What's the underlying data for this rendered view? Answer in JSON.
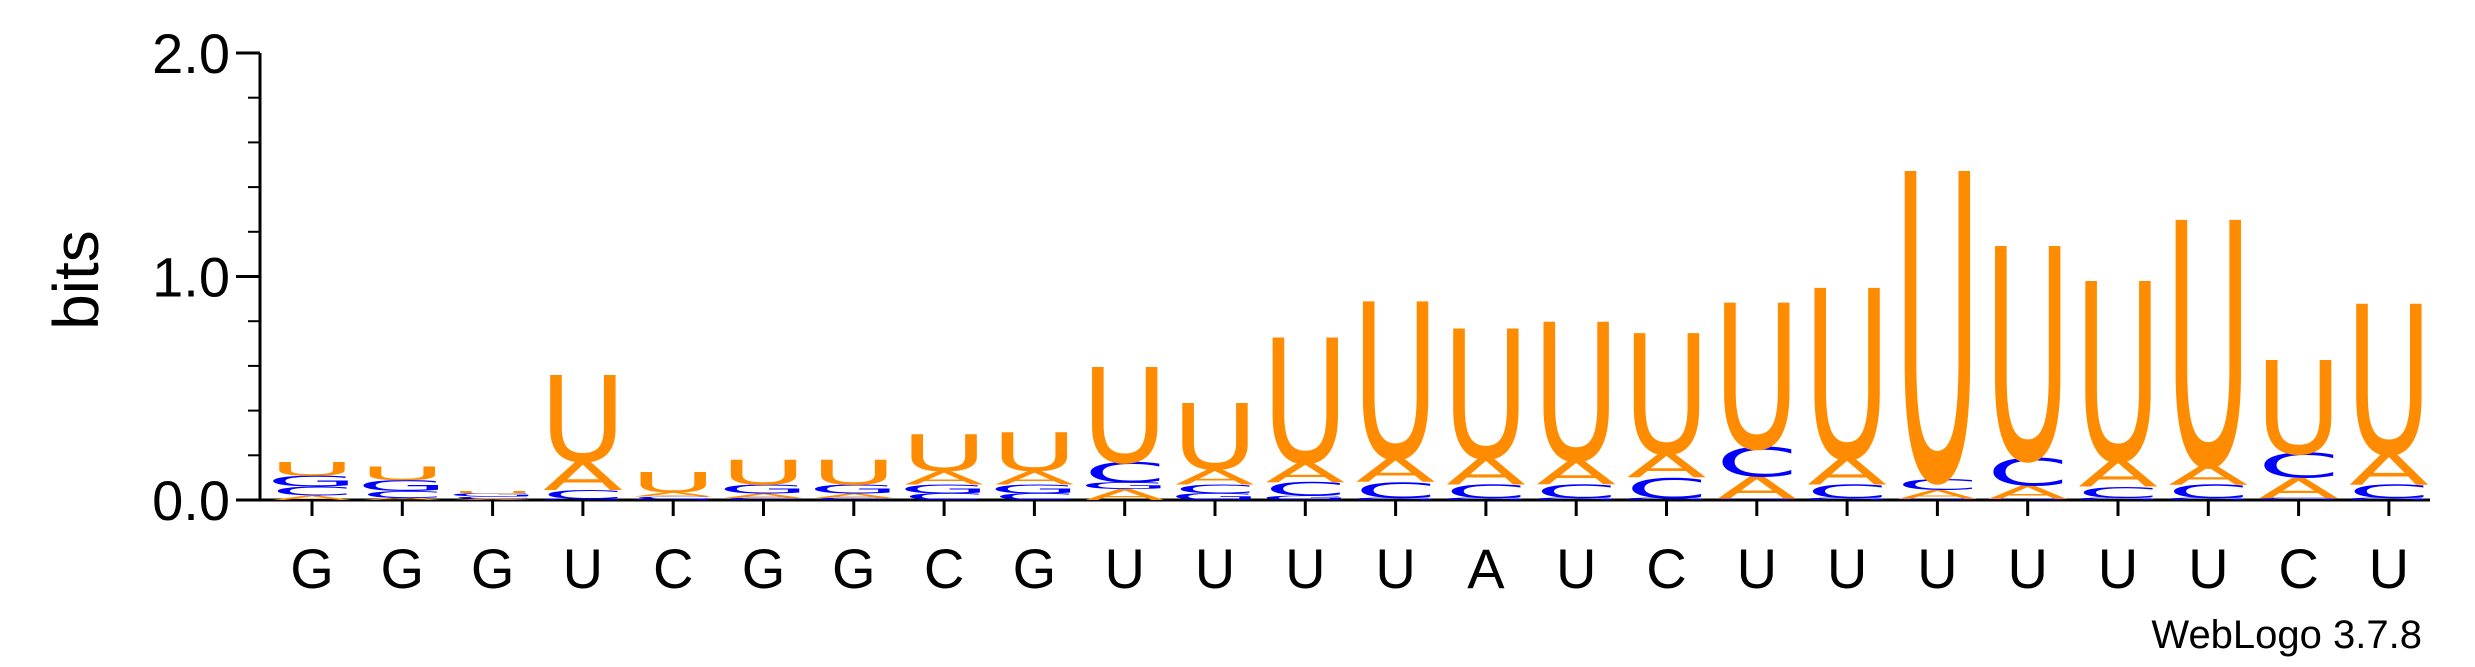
{
  "chart_data": {
    "type": "sequence-logo",
    "ylabel": "bits",
    "ylim": [
      0,
      2.0
    ],
    "y_ticks": [
      "0.0",
      "1.0",
      "2.0"
    ],
    "footer": "WebLogo 3.7.8",
    "colors": {
      "U": "#ff8c00",
      "A": "#ff8c00",
      "C": "#0000ff",
      "G": "#0000ff"
    },
    "positions": [
      {
        "label": "G",
        "letters": [
          {
            "l": "A",
            "v": 0.02
          },
          {
            "l": "C",
            "v": 0.04
          },
          {
            "l": "G",
            "v": 0.05
          },
          {
            "l": "U",
            "v": 0.06
          }
        ]
      },
      {
        "label": "G",
        "letters": [
          {
            "l": "A",
            "v": 0.01
          },
          {
            "l": "C",
            "v": 0.03
          },
          {
            "l": "G",
            "v": 0.05
          },
          {
            "l": "U",
            "v": 0.06
          }
        ]
      },
      {
        "label": "G",
        "letters": [
          {
            "l": "A",
            "v": 0.005
          },
          {
            "l": "C",
            "v": 0.01
          },
          {
            "l": "G",
            "v": 0.015
          },
          {
            "l": "U",
            "v": 0.01
          }
        ]
      },
      {
        "label": "U",
        "letters": [
          {
            "l": "G",
            "v": 0.005
          },
          {
            "l": "C",
            "v": 0.04
          },
          {
            "l": "A",
            "v": 0.13
          },
          {
            "l": "U",
            "v": 0.38
          }
        ]
      },
      {
        "label": "C",
        "letters": [
          {
            "l": "G",
            "v": 0.005
          },
          {
            "l": "C",
            "v": 0.01
          },
          {
            "l": "A",
            "v": 0.02
          },
          {
            "l": "U",
            "v": 0.09
          }
        ]
      },
      {
        "label": "G",
        "letters": [
          {
            "l": "C",
            "v": 0.01
          },
          {
            "l": "A",
            "v": 0.02
          },
          {
            "l": "G",
            "v": 0.04
          },
          {
            "l": "U",
            "v": 0.11
          }
        ]
      },
      {
        "label": "G",
        "letters": [
          {
            "l": "C",
            "v": 0.01
          },
          {
            "l": "A",
            "v": 0.02
          },
          {
            "l": "G",
            "v": 0.04
          },
          {
            "l": "U",
            "v": 0.11
          }
        ]
      },
      {
        "label": "C",
        "letters": [
          {
            "l": "C",
            "v": 0.03
          },
          {
            "l": "G",
            "v": 0.04
          },
          {
            "l": "A",
            "v": 0.06
          },
          {
            "l": "U",
            "v": 0.16
          }
        ]
      },
      {
        "label": "G",
        "letters": [
          {
            "l": "C",
            "v": 0.03
          },
          {
            "l": "G",
            "v": 0.04
          },
          {
            "l": "A",
            "v": 0.06
          },
          {
            "l": "U",
            "v": 0.17
          }
        ]
      },
      {
        "label": "U",
        "letters": [
          {
            "l": "A",
            "v": 0.05
          },
          {
            "l": "G",
            "v": 0.03
          },
          {
            "l": "C",
            "v": 0.09
          },
          {
            "l": "U",
            "v": 0.42
          }
        ]
      },
      {
        "label": "U",
        "letters": [
          {
            "l": "G",
            "v": 0.03
          },
          {
            "l": "C",
            "v": 0.04
          },
          {
            "l": "A",
            "v": 0.07
          },
          {
            "l": "U",
            "v": 0.29
          }
        ]
      },
      {
        "label": "U",
        "letters": [
          {
            "l": "G",
            "v": 0.02
          },
          {
            "l": "C",
            "v": 0.06
          },
          {
            "l": "A",
            "v": 0.09
          },
          {
            "l": "U",
            "v": 0.55
          }
        ]
      },
      {
        "label": "U",
        "letters": [
          {
            "l": "G",
            "v": 0.01
          },
          {
            "l": "C",
            "v": 0.07
          },
          {
            "l": "A",
            "v": 0.11
          },
          {
            "l": "U",
            "v": 0.69
          }
        ]
      },
      {
        "label": "A",
        "letters": [
          {
            "l": "G",
            "v": 0.01
          },
          {
            "l": "C",
            "v": 0.06
          },
          {
            "l": "A",
            "v": 0.12
          },
          {
            "l": "U",
            "v": 0.57
          }
        ]
      },
      {
        "label": "U",
        "letters": [
          {
            "l": "G",
            "v": 0.01
          },
          {
            "l": "C",
            "v": 0.06
          },
          {
            "l": "A",
            "v": 0.11
          },
          {
            "l": "U",
            "v": 0.61
          }
        ]
      },
      {
        "label": "C",
        "letters": [
          {
            "l": "G",
            "v": 0.01
          },
          {
            "l": "C",
            "v": 0.09
          },
          {
            "l": "A",
            "v": 0.11
          },
          {
            "l": "U",
            "v": 0.53
          }
        ]
      },
      {
        "label": "U",
        "letters": [
          {
            "l": "G",
            "v": 0.005
          },
          {
            "l": "A",
            "v": 0.1
          },
          {
            "l": "C",
            "v": 0.13
          },
          {
            "l": "U",
            "v": 0.64
          }
        ]
      },
      {
        "label": "U",
        "letters": [
          {
            "l": "G",
            "v": 0.01
          },
          {
            "l": "C",
            "v": 0.06
          },
          {
            "l": "A",
            "v": 0.12
          },
          {
            "l": "U",
            "v": 0.75
          }
        ]
      },
      {
        "label": "U",
        "letters": [
          {
            "l": "G",
            "v": 0.005
          },
          {
            "l": "A",
            "v": 0.04
          },
          {
            "l": "C",
            "v": 0.05
          },
          {
            "l": "U",
            "v": 1.36
          }
        ]
      },
      {
        "label": "U",
        "letters": [
          {
            "l": "G",
            "v": 0.005
          },
          {
            "l": "A",
            "v": 0.06
          },
          {
            "l": "C",
            "v": 0.12
          },
          {
            "l": "U",
            "v": 0.94
          }
        ]
      },
      {
        "label": "U",
        "letters": [
          {
            "l": "G",
            "v": 0.01
          },
          {
            "l": "C",
            "v": 0.05
          },
          {
            "l": "A",
            "v": 0.12
          },
          {
            "l": "U",
            "v": 0.79
          }
        ]
      },
      {
        "label": "U",
        "letters": [
          {
            "l": "G",
            "v": 0.01
          },
          {
            "l": "C",
            "v": 0.06
          },
          {
            "l": "A",
            "v": 0.09
          },
          {
            "l": "U",
            "v": 1.08
          }
        ]
      },
      {
        "label": "C",
        "letters": [
          {
            "l": "G",
            "v": 0.01
          },
          {
            "l": "A",
            "v": 0.09
          },
          {
            "l": "C",
            "v": 0.11
          },
          {
            "l": "U",
            "v": 0.41
          }
        ]
      },
      {
        "label": "U",
        "letters": [
          {
            "l": "G",
            "v": 0.01
          },
          {
            "l": "C",
            "v": 0.06
          },
          {
            "l": "A",
            "v": 0.14
          },
          {
            "l": "U",
            "v": 0.66
          }
        ]
      }
    ]
  }
}
